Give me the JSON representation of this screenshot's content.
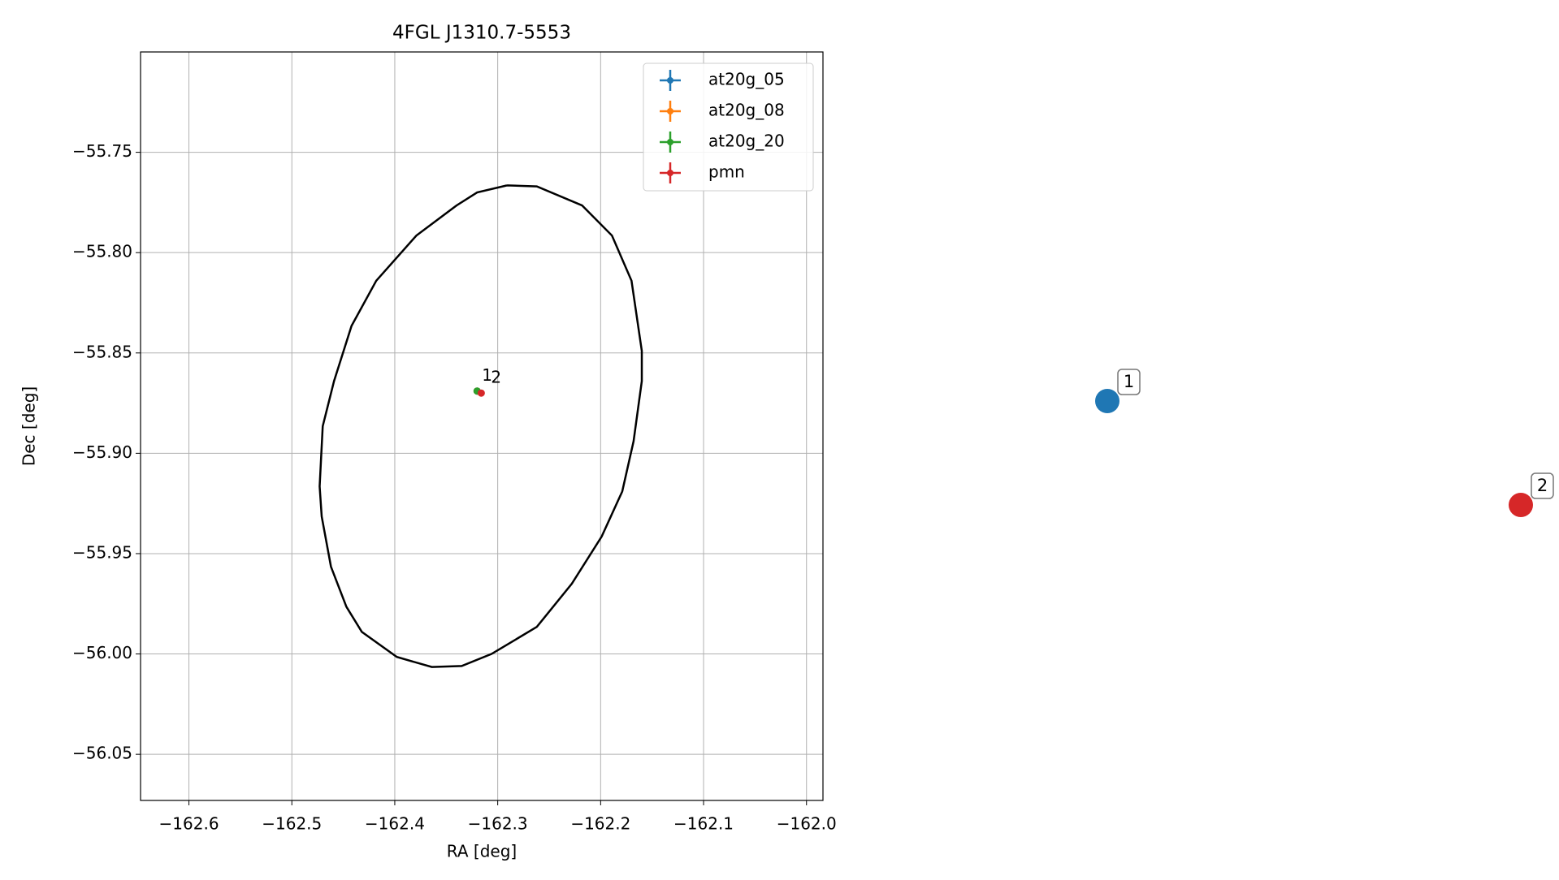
{
  "chart_data": {
    "type": "scatter",
    "title": "4FGL J1310.7-5553",
    "x_label": "RA [deg]",
    "y_label": "Dec [deg]",
    "xlim": [
      -162.647,
      -161.984
    ],
    "ylim": [
      -56.073,
      -55.7
    ],
    "xticks": [
      {
        "value": -162.6,
        "label": "−162.6"
      },
      {
        "value": -162.5,
        "label": "−162.5"
      },
      {
        "value": -162.4,
        "label": "−162.4"
      },
      {
        "value": -162.3,
        "label": "−162.3"
      },
      {
        "value": -162.2,
        "label": "−162.2"
      },
      {
        "value": -162.1,
        "label": "−162.1"
      },
      {
        "value": -162.0,
        "label": "−162.0"
      }
    ],
    "yticks": [
      {
        "value": -55.75,
        "label": "−55.75"
      },
      {
        "value": -55.8,
        "label": "−55.80"
      },
      {
        "value": -55.85,
        "label": "−55.85"
      },
      {
        "value": -55.9,
        "label": "−55.90"
      },
      {
        "value": -55.95,
        "label": "−55.95"
      },
      {
        "value": -56.0,
        "label": "−56.00"
      },
      {
        "value": -56.05,
        "label": "−56.05"
      }
    ],
    "grid": true,
    "legend": "upper right",
    "series": [
      {
        "name": "at20g_05",
        "color": "#1f77b4",
        "x": [
          -162.32
        ],
        "values": [
          -55.869
        ]
      },
      {
        "name": "at20g_08",
        "color": "#ff7f0e",
        "x": [
          -162.32
        ],
        "values": [
          -55.869
        ]
      },
      {
        "name": "at20g_20",
        "color": "#2ca02c",
        "x": [
          -162.32
        ],
        "values": [
          -55.869
        ]
      },
      {
        "name": "pmn",
        "color": "#d62728",
        "x": [
          -162.316
        ],
        "values": [
          -55.87
        ]
      }
    ],
    "point_labels": [
      "1",
      "2"
    ],
    "ellipse": {
      "color": "#000000",
      "x": [
        -162.291,
        -162.262,
        -162.218,
        -162.189,
        -162.17,
        -162.16,
        -162.16,
        -162.168,
        -162.179,
        -162.199,
        -162.228,
        -162.262,
        -162.306,
        -162.335,
        -162.364,
        -162.398,
        -162.432,
        -162.447,
        -162.462,
        -162.471,
        -162.473,
        -162.47,
        -162.459,
        -162.442,
        -162.418,
        -162.379,
        -162.34,
        -162.32,
        -162.291
      ],
      "y": [
        -55.7665,
        -55.767,
        -55.7765,
        -55.7915,
        -55.814,
        -55.849,
        -55.864,
        -55.894,
        -55.919,
        -55.9415,
        -55.965,
        -55.9865,
        -56.0,
        -56.006,
        -56.0065,
        -56.0015,
        -55.989,
        -55.9765,
        -55.9565,
        -55.9315,
        -55.9165,
        -55.8865,
        -55.864,
        -55.8365,
        -55.814,
        -55.7915,
        -55.7765,
        -55.77,
        -55.7665
      ]
    },
    "source_markers": [
      {
        "label": "1",
        "color": "#1f77b4"
      },
      {
        "label": "2",
        "color": "#d62728"
      }
    ]
  }
}
